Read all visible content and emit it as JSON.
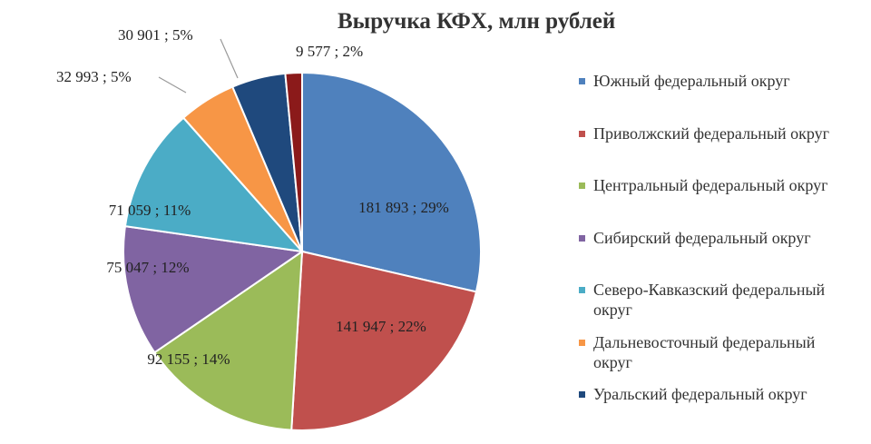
{
  "chart_data": {
    "type": "pie",
    "title": "Выручка КФХ, млн рублей",
    "legend_position": "right",
    "slices": [
      {
        "name": "Южный федеральный округ",
        "value": 181893,
        "value_text": "181 893",
        "percent": 29,
        "percent_text": "29%",
        "color": "#4f81bd"
      },
      {
        "name": "Приволжский федеральный округ",
        "value": 141947,
        "value_text": "141 947",
        "percent": 22,
        "percent_text": "22%",
        "color": "#c0504d"
      },
      {
        "name": "Центральный федеральный округ",
        "value": 92155,
        "value_text": "92 155",
        "percent": 14,
        "percent_text": "14%",
        "color": "#9bbb59"
      },
      {
        "name": "Сибирский федеральный округ",
        "value": 75047,
        "value_text": "75 047",
        "percent": 12,
        "percent_text": "12%",
        "color": "#8064a2"
      },
      {
        "name": "Северо-Кавказский федеральный округ",
        "value": 71059,
        "value_text": "71 059",
        "percent": 11,
        "percent_text": "11%",
        "color": "#4bacc6"
      },
      {
        "name": "Дальневосточный федеральный округ",
        "value": 32993,
        "value_text": "32 993",
        "percent": 5,
        "percent_text": "5%",
        "color": "#f79646"
      },
      {
        "name": "Уральский федеральный округ",
        "value": 30901,
        "value_text": "30 901",
        "percent": 5,
        "percent_text": "5%",
        "color": "#1f497d"
      },
      {
        "name": "",
        "value": 9577,
        "value_text": "9 577",
        "percent": 2,
        "percent_text": "2%",
        "color": "#8b1a1a"
      }
    ],
    "legend": [
      {
        "line1": "Южный федеральный округ",
        "line2": ""
      },
      {
        "line1": "Приволжский федеральный округ",
        "line2": ""
      },
      {
        "line1": "Центральный федеральный округ",
        "line2": ""
      },
      {
        "line1": "Сибирский федеральный округ",
        "line2": ""
      },
      {
        "line1": "Северо-Кавказский федеральный",
        "line2": "округ"
      },
      {
        "line1": "Дальневосточный федеральный",
        "line2": "округ"
      },
      {
        "line1": "Уральский федеральный округ",
        "line2": ""
      }
    ]
  }
}
